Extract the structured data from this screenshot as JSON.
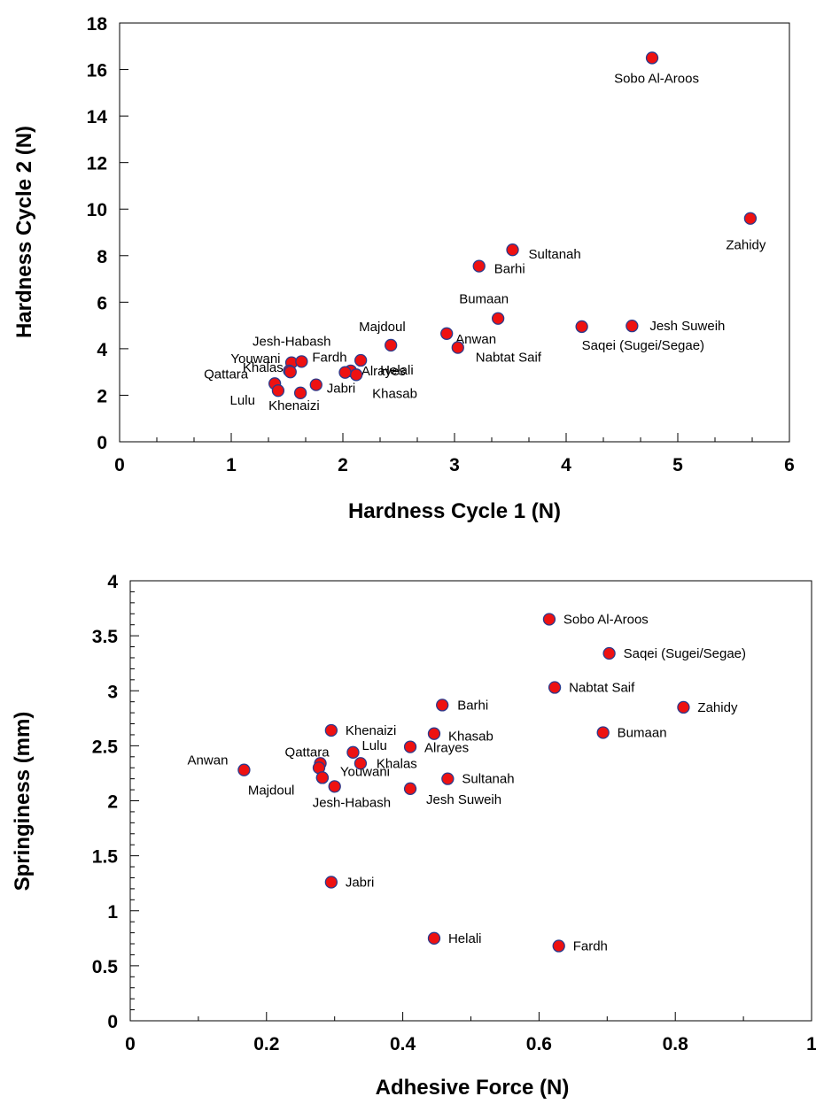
{
  "chart_data": [
    {
      "type": "scatter",
      "xlabel": "Hardness Cycle 1 (N)",
      "ylabel": "Hardness Cycle 2 (N)",
      "xlim": [
        0,
        6
      ],
      "ylim": [
        0,
        18
      ],
      "xticks": [
        0,
        1,
        2,
        3,
        4,
        5,
        6
      ],
      "yticks": [
        0,
        2,
        4,
        6,
        8,
        10,
        12,
        14,
        16,
        18
      ],
      "grid": false,
      "points": [
        {
          "label": "Sobo Al-Aroos",
          "x": 4.77,
          "y": 16.5
        },
        {
          "label": "Zahidy",
          "x": 5.65,
          "y": 9.6
        },
        {
          "label": "Sultanah",
          "x": 3.52,
          "y": 8.25
        },
        {
          "label": "Barhi",
          "x": 3.22,
          "y": 7.55
        },
        {
          "label": "Bumaan",
          "x": 3.39,
          "y": 5.3
        },
        {
          "label": "Saqei (Sugei/Segae)",
          "x": 4.14,
          "y": 4.95
        },
        {
          "label": "Jesh Suweih",
          "x": 4.59,
          "y": 4.98
        },
        {
          "label": "Anwan",
          "x": 2.93,
          "y": 4.65
        },
        {
          "label": "Nabtat Saif",
          "x": 3.03,
          "y": 4.05
        },
        {
          "label": "Majdoul",
          "x": 2.43,
          "y": 4.15
        },
        {
          "label": "Helali",
          "x": 2.16,
          "y": 3.5
        },
        {
          "label": "Alrayes",
          "x": 2.07,
          "y": 3.05
        },
        {
          "label": "Khasab",
          "x": 2.12,
          "y": 2.88
        },
        {
          "label": "",
          "x": 2.02,
          "y": 2.98
        },
        {
          "label": "Jesh-Habash",
          "x": 1.54,
          "y": 3.4
        },
        {
          "label": "Fardh",
          "x": 1.63,
          "y": 3.45
        },
        {
          "label": "Youwani",
          "x": 1.52,
          "y": 3.05
        },
        {
          "label": "Khalas",
          "x": 1.53,
          "y": 3.0
        },
        {
          "label": "Qattara",
          "x": 1.39,
          "y": 2.5
        },
        {
          "label": "Lulu",
          "x": 1.42,
          "y": 2.2
        },
        {
          "label": "Khenaizi",
          "x": 1.62,
          "y": 2.1
        },
        {
          "label": "Jabri",
          "x": 1.76,
          "y": 2.45
        }
      ]
    },
    {
      "type": "scatter",
      "xlabel": "Adhesive Force (N)",
      "ylabel": "Springiness (mm)",
      "xlim": [
        0,
        1
      ],
      "ylim": [
        0,
        4
      ],
      "xticks": [
        0,
        0.2,
        0.4,
        0.6,
        0.8,
        1
      ],
      "xtick_labels": [
        "0",
        "0.2",
        "0.4",
        "0.6",
        "0.8",
        "1"
      ],
      "yticks": [
        0,
        0.5,
        1,
        1.5,
        2,
        2.5,
        3,
        3.5,
        4
      ],
      "ytick_labels": [
        "0",
        "0.5",
        "1",
        "1.5",
        "2",
        "2.5",
        "3",
        "3.5",
        "4"
      ],
      "grid": false,
      "points": [
        {
          "label": "Sobo Al-Aroos",
          "x": 0.615,
          "y": 3.65
        },
        {
          "label": "Saqei (Sugei/Segae)",
          "x": 0.703,
          "y": 3.34
        },
        {
          "label": "Nabtat Saif",
          "x": 0.623,
          "y": 3.03
        },
        {
          "label": "Zahidy",
          "x": 0.812,
          "y": 2.85
        },
        {
          "label": "Barhi",
          "x": 0.458,
          "y": 2.87
        },
        {
          "label": "Bumaan",
          "x": 0.694,
          "y": 2.62
        },
        {
          "label": "Khenaizi",
          "x": 0.295,
          "y": 2.64
        },
        {
          "label": "Khasab",
          "x": 0.446,
          "y": 2.61
        },
        {
          "label": "Alrayes",
          "x": 0.411,
          "y": 2.49
        },
        {
          "label": "Lulu",
          "x": 0.327,
          "y": 2.44
        },
        {
          "label": "Khalas",
          "x": 0.338,
          "y": 2.34
        },
        {
          "label": "Qattara",
          "x": 0.279,
          "y": 2.34
        },
        {
          "label": "",
          "x": 0.277,
          "y": 2.3
        },
        {
          "label": "Anwan",
          "x": 0.167,
          "y": 2.28
        },
        {
          "label": "Youwani",
          "x": 0.282,
          "y": 2.21
        },
        {
          "label": "Majdoul",
          "x": 0.282,
          "y": 2.21
        },
        {
          "label": "Jesh-Habash",
          "x": 0.3,
          "y": 2.13
        },
        {
          "label": "Sultanah",
          "x": 0.466,
          "y": 2.2
        },
        {
          "label": "Jesh Suweih",
          "x": 0.411,
          "y": 2.11
        },
        {
          "label": "Jabri",
          "x": 0.295,
          "y": 1.26
        },
        {
          "label": "Helali",
          "x": 0.446,
          "y": 0.75
        },
        {
          "label": "Fardh",
          "x": 0.629,
          "y": 0.68
        }
      ]
    }
  ]
}
